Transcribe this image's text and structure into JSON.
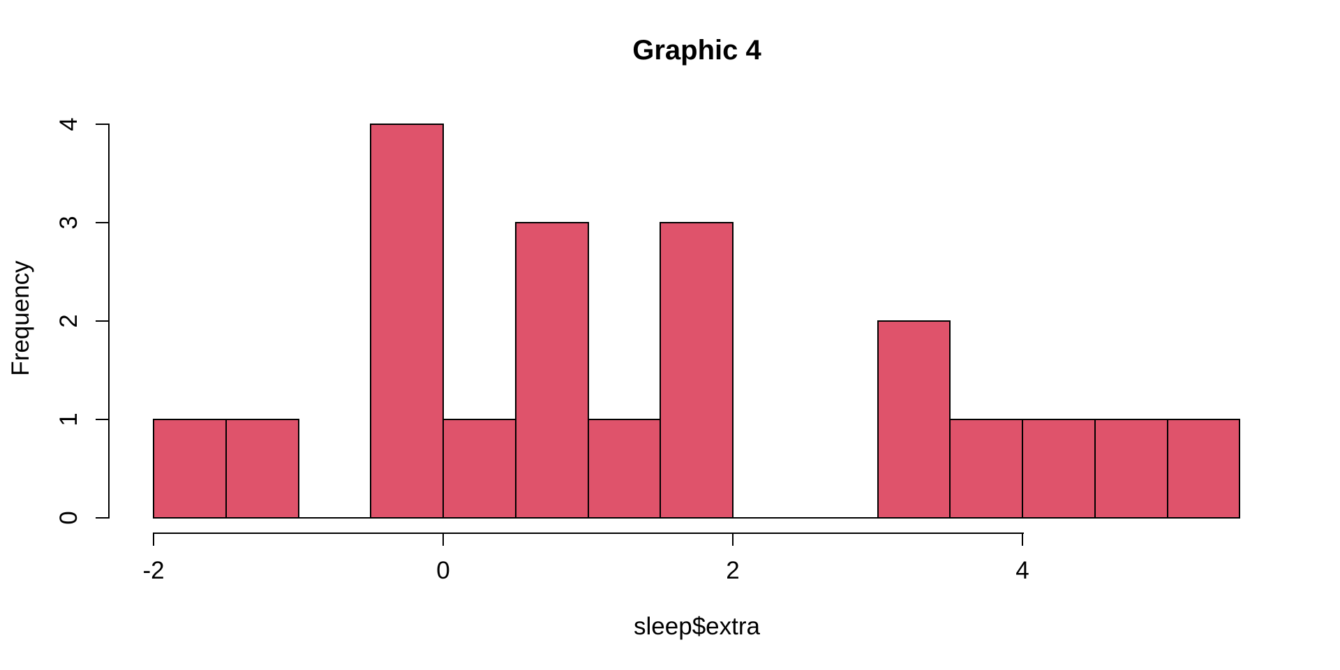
{
  "chart_data": {
    "type": "bar",
    "subtype": "histogram",
    "title": "Graphic 4",
    "xlabel": "sleep$extra",
    "ylabel": "Frequency",
    "xlim": [
      -2,
      5.5
    ],
    "ylim": [
      0,
      4
    ],
    "grid": false,
    "bar_fill": "#DF536B",
    "bar_border": "#000000",
    "axis_color": "#000000",
    "text_color": "#000000",
    "background": "#FFFFFF",
    "x_ticks": [
      {
        "value": -2,
        "label": "-2"
      },
      {
        "value": 0,
        "label": "0"
      },
      {
        "value": 2,
        "label": "2"
      },
      {
        "value": 4,
        "label": "4"
      }
    ],
    "y_ticks": [
      {
        "value": 0,
        "label": "0"
      },
      {
        "value": 1,
        "label": "1"
      },
      {
        "value": 2,
        "label": "2"
      },
      {
        "value": 3,
        "label": "3"
      },
      {
        "value": 4,
        "label": "4"
      }
    ],
    "bins": [
      {
        "from": -2.0,
        "to": -1.5,
        "count": 1
      },
      {
        "from": -1.5,
        "to": -1.0,
        "count": 1
      },
      {
        "from": -1.0,
        "to": -0.5,
        "count": 0
      },
      {
        "from": -0.5,
        "to": 0.0,
        "count": 4
      },
      {
        "from": 0.0,
        "to": 0.5,
        "count": 1
      },
      {
        "from": 0.5,
        "to": 1.0,
        "count": 3
      },
      {
        "from": 1.0,
        "to": 1.5,
        "count": 1
      },
      {
        "from": 1.5,
        "to": 2.0,
        "count": 3
      },
      {
        "from": 2.0,
        "to": 2.5,
        "count": 0
      },
      {
        "from": 2.5,
        "to": 3.0,
        "count": 0
      },
      {
        "from": 3.0,
        "to": 3.5,
        "count": 2
      },
      {
        "from": 3.5,
        "to": 4.0,
        "count": 1
      },
      {
        "from": 4.0,
        "to": 4.5,
        "count": 1
      },
      {
        "from": 4.5,
        "to": 5.0,
        "count": 1
      },
      {
        "from": 5.0,
        "to": 5.5,
        "count": 1
      }
    ]
  }
}
